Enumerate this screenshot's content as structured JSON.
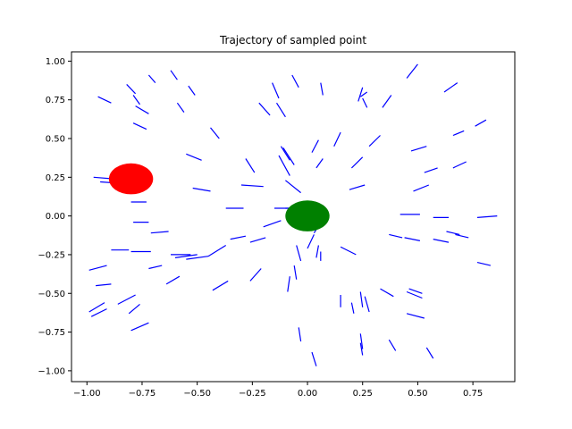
{
  "chart_data": {
    "type": "scatter",
    "title": "Trajectory of sampled point",
    "xlabel": "",
    "ylabel": "",
    "xlim": [
      -1.07,
      0.94
    ],
    "ylim": [
      -1.07,
      1.06
    ],
    "xticks": [
      -1.0,
      -0.75,
      -0.5,
      -0.25,
      0.0,
      0.25,
      0.5,
      0.75
    ],
    "yticks": [
      -1.0,
      -0.75,
      -0.5,
      -0.25,
      0.0,
      0.25,
      0.5,
      0.75,
      1.0
    ],
    "xtick_labels": [
      "−1.00",
      "−0.75",
      "−0.50",
      "−0.25",
      "0.00",
      "0.25",
      "0.50",
      "0.75"
    ],
    "ytick_labels": [
      "−1.00",
      "−0.75",
      "−0.50",
      "−0.25",
      "0.00",
      "0.25",
      "0.50",
      "0.75",
      "1.00"
    ],
    "grid": false,
    "colors": {
      "segments": "#0000ff",
      "start": "#ff0000",
      "goal": "#008000"
    },
    "markers": [
      {
        "name": "start",
        "x": -0.8,
        "y": 0.24,
        "rx": 0.1,
        "ry": 0.1
      },
      {
        "name": "goal",
        "x": 0.0,
        "y": 0.0,
        "rx": 0.1,
        "ry": 0.1
      }
    ],
    "segments": [
      [
        -0.95,
        0.77,
        -0.89,
        0.73
      ],
      [
        -0.82,
        0.85,
        -0.78,
        0.79
      ],
      [
        -0.72,
        0.91,
        -0.69,
        0.86
      ],
      [
        -0.62,
        0.94,
        -0.59,
        0.88
      ],
      [
        -0.54,
        0.84,
        -0.51,
        0.78
      ],
      [
        -0.79,
        0.78,
        -0.76,
        0.72
      ],
      [
        -0.78,
        0.71,
        -0.72,
        0.66
      ],
      [
        -0.59,
        0.73,
        -0.56,
        0.67
      ],
      [
        -0.79,
        0.6,
        -0.73,
        0.56
      ],
      [
        -0.44,
        0.57,
        -0.4,
        0.5
      ],
      [
        -0.55,
        0.4,
        -0.48,
        0.36
      ],
      [
        -0.97,
        0.25,
        -0.88,
        0.24
      ],
      [
        -0.94,
        0.22,
        -0.84,
        0.21
      ],
      [
        -0.52,
        0.18,
        -0.44,
        0.16
      ],
      [
        -0.8,
        0.09,
        -0.73,
        0.09
      ],
      [
        -0.37,
        0.05,
        -0.29,
        0.05
      ],
      [
        -0.79,
        -0.04,
        -0.72,
        -0.04
      ],
      [
        -0.71,
        -0.11,
        -0.63,
        -0.1
      ],
      [
        -0.89,
        -0.22,
        -0.81,
        -0.22
      ],
      [
        -0.8,
        -0.23,
        -0.71,
        -0.23
      ],
      [
        -0.62,
        -0.25,
        -0.53,
        -0.25
      ],
      [
        -0.6,
        -0.27,
        -0.5,
        -0.25
      ],
      [
        -0.55,
        -0.28,
        -0.45,
        -0.26
      ],
      [
        -0.45,
        -0.26,
        -0.37,
        -0.19
      ],
      [
        -0.35,
        -0.15,
        -0.28,
        -0.13
      ],
      [
        -0.26,
        -0.17,
        -0.19,
        -0.14
      ],
      [
        -0.2,
        -0.07,
        -0.12,
        -0.03
      ],
      [
        -0.15,
        0.05,
        -0.06,
        0.05
      ],
      [
        -0.99,
        -0.35,
        -0.91,
        -0.32
      ],
      [
        -0.96,
        -0.45,
        -0.89,
        -0.44
      ],
      [
        -0.72,
        -0.34,
        -0.66,
        -0.32
      ],
      [
        -0.64,
        -0.44,
        -0.58,
        -0.39
      ],
      [
        -0.43,
        -0.48,
        -0.36,
        -0.42
      ],
      [
        -0.26,
        -0.42,
        -0.21,
        -0.34
      ],
      [
        -0.99,
        -0.62,
        -0.92,
        -0.56
      ],
      [
        -0.98,
        -0.65,
        -0.91,
        -0.6
      ],
      [
        -0.86,
        -0.57,
        -0.78,
        -0.51
      ],
      [
        -0.81,
        -0.63,
        -0.76,
        -0.57
      ],
      [
        -0.8,
        -0.74,
        -0.72,
        -0.69
      ],
      [
        -0.28,
        0.37,
        -0.24,
        0.28
      ],
      [
        -0.3,
        0.2,
        -0.2,
        0.19
      ],
      [
        -0.22,
        0.73,
        -0.17,
        0.65
      ],
      [
        -0.16,
        0.86,
        -0.13,
        0.76
      ],
      [
        -0.14,
        0.73,
        -0.1,
        0.64
      ],
      [
        -0.12,
        0.45,
        -0.08,
        0.36
      ],
      [
        -0.11,
        0.44,
        -0.06,
        0.33
      ],
      [
        -0.13,
        0.39,
        -0.08,
        0.26
      ],
      [
        -0.07,
        0.91,
        -0.04,
        0.83
      ],
      [
        -0.1,
        0.23,
        -0.03,
        0.15
      ],
      [
        -0.1,
        0.05,
        -0.02,
        0.05
      ],
      [
        0.02,
        0.41,
        0.05,
        0.49
      ],
      [
        0.04,
        0.31,
        0.07,
        0.37
      ],
      [
        0.06,
        0.86,
        0.07,
        0.78
      ],
      [
        0.12,
        0.45,
        0.15,
        0.54
      ],
      [
        0.03,
        -0.11,
        0.07,
        -0.02
      ],
      [
        0.0,
        -0.21,
        0.03,
        -0.12
      ],
      [
        -0.05,
        -0.19,
        -0.03,
        -0.29
      ],
      [
        -0.06,
        -0.32,
        -0.05,
        -0.41
      ],
      [
        -0.08,
        -0.39,
        -0.09,
        -0.49
      ],
      [
        0.05,
        -0.19,
        0.04,
        -0.27
      ],
      [
        0.06,
        -0.23,
        0.06,
        -0.29
      ],
      [
        -0.04,
        -0.72,
        -0.03,
        -0.81
      ],
      [
        0.02,
        -0.88,
        0.04,
        -0.97
      ],
      [
        0.15,
        -0.51,
        0.15,
        -0.59
      ],
      [
        0.2,
        -0.56,
        0.21,
        -0.63
      ],
      [
        0.24,
        -0.49,
        0.25,
        -0.59
      ],
      [
        0.26,
        -0.52,
        0.28,
        -0.62
      ],
      [
        0.24,
        -0.82,
        0.25,
        -0.9
      ],
      [
        0.24,
        -0.76,
        0.25,
        -0.86
      ],
      [
        0.33,
        -0.47,
        0.39,
        -0.52
      ],
      [
        0.37,
        -0.8,
        0.4,
        -0.87
      ],
      [
        0.46,
        -0.47,
        0.52,
        -0.5
      ],
      [
        0.45,
        -0.49,
        0.52,
        -0.53
      ],
      [
        0.45,
        -0.63,
        0.53,
        -0.66
      ],
      [
        0.54,
        -0.85,
        0.57,
        -0.92
      ],
      [
        0.15,
        -0.2,
        0.22,
        -0.25
      ],
      [
        0.37,
        -0.12,
        0.43,
        -0.14
      ],
      [
        0.44,
        -0.14,
        0.51,
        -0.16
      ],
      [
        0.57,
        -0.15,
        0.64,
        -0.17
      ],
      [
        0.63,
        -0.1,
        0.69,
        -0.12
      ],
      [
        0.67,
        -0.12,
        0.73,
        -0.14
      ],
      [
        0.77,
        -0.3,
        0.83,
        -0.32
      ],
      [
        0.42,
        0.01,
        0.51,
        0.01
      ],
      [
        0.57,
        -0.01,
        0.64,
        -0.01
      ],
      [
        0.77,
        -0.01,
        0.86,
        0.0
      ],
      [
        0.19,
        0.17,
        0.26,
        0.2
      ],
      [
        0.2,
        0.31,
        0.25,
        0.38
      ],
      [
        0.28,
        0.45,
        0.33,
        0.52
      ],
      [
        0.24,
        0.77,
        0.27,
        0.8
      ],
      [
        0.23,
        0.74,
        0.25,
        0.83
      ],
      [
        0.25,
        0.76,
        0.27,
        0.7
      ],
      [
        0.34,
        0.7,
        0.38,
        0.78
      ],
      [
        0.45,
        0.89,
        0.5,
        0.98
      ],
      [
        0.62,
        0.8,
        0.68,
        0.86
      ],
      [
        0.47,
        0.42,
        0.54,
        0.45
      ],
      [
        0.48,
        0.16,
        0.55,
        0.2
      ],
      [
        0.53,
        0.28,
        0.59,
        0.31
      ],
      [
        0.66,
        0.52,
        0.71,
        0.55
      ],
      [
        0.76,
        0.58,
        0.81,
        0.62
      ],
      [
        0.66,
        0.31,
        0.72,
        0.35
      ],
      [
        0.49,
        0.15,
        0.49,
        0.15
      ]
    ]
  }
}
